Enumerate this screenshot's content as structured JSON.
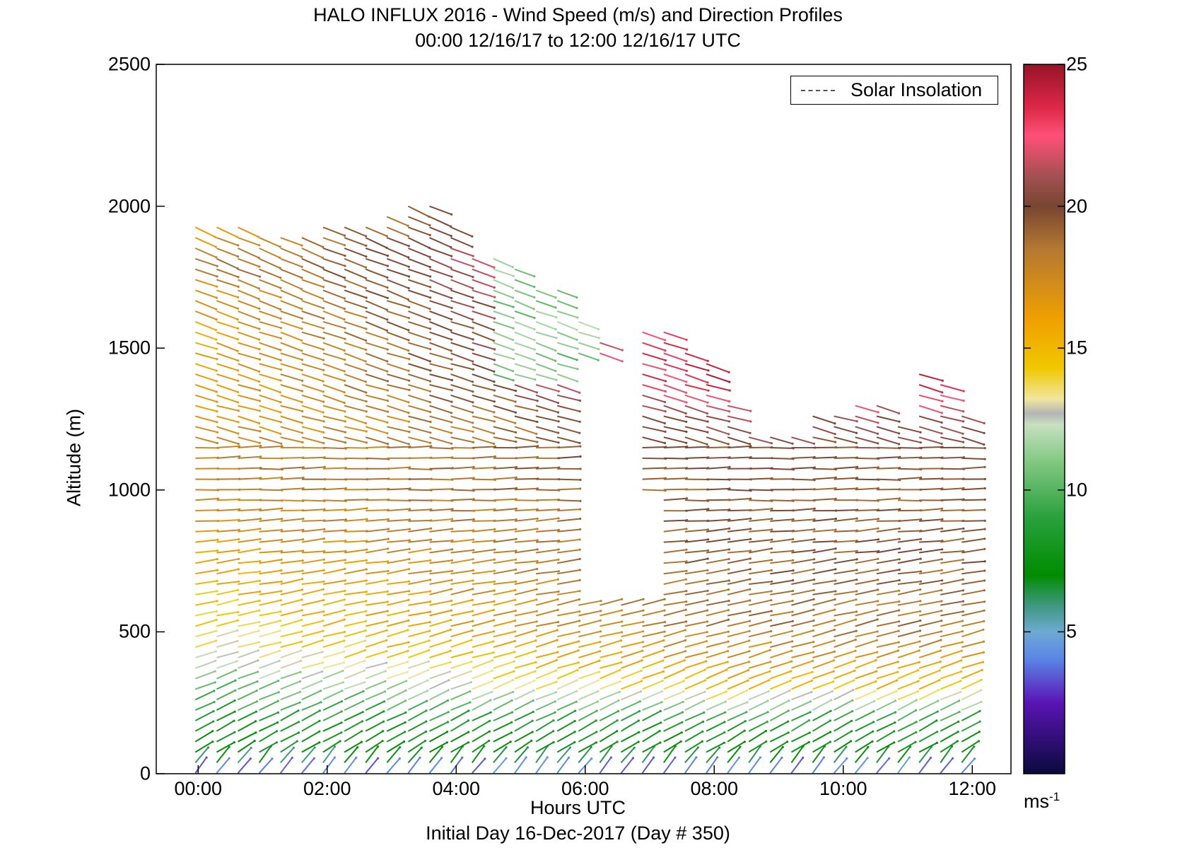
{
  "chart_data": {
    "type": "quiver",
    "title": "HALO INFLUX 2016 - Wind Speed (m/s) and Direction Profiles",
    "subtitle": "00:00 12/16/17 to 12:00 12/16/17  UTC",
    "xlabel": "Hours UTC",
    "xsublabel": "Initial Day 16-Dec-2017 (Day # 350)",
    "ylabel": "Altitude (m)",
    "xlim": [
      -0.65,
      12.6
    ],
    "ylim": [
      0,
      2500
    ],
    "x_ticks": [
      {
        "value": 0,
        "label": "00:00"
      },
      {
        "value": 2,
        "label": "02:00"
      },
      {
        "value": 4,
        "label": "04:00"
      },
      {
        "value": 6,
        "label": "06:00"
      },
      {
        "value": 8,
        "label": "08:00"
      },
      {
        "value": 10,
        "label": "10:00"
      },
      {
        "value": 12,
        "label": "12:00"
      }
    ],
    "y_ticks": [
      0,
      500,
      1000,
      1500,
      2000,
      2500
    ],
    "colorbar": {
      "range": [
        0,
        25
      ],
      "ticks": [
        5,
        10,
        15,
        20,
        25
      ],
      "unit": "ms",
      "unit_exponent": "-1",
      "stops": [
        {
          "v": 0,
          "c": "#0a0a3c"
        },
        {
          "v": 2.5,
          "c": "#5a14b4"
        },
        {
          "v": 4,
          "c": "#5a82e6"
        },
        {
          "v": 5,
          "c": "#6eaad2"
        },
        {
          "v": 6,
          "c": "#3c9678"
        },
        {
          "v": 7,
          "c": "#008c00"
        },
        {
          "v": 9,
          "c": "#28a03c"
        },
        {
          "v": 11,
          "c": "#82c882"
        },
        {
          "v": 12.3,
          "c": "#c8e0c0"
        },
        {
          "v": 12.7,
          "c": "#b4b4b4"
        },
        {
          "v": 13.2,
          "c": "#f0e6a0"
        },
        {
          "v": 14.3,
          "c": "#f0c800"
        },
        {
          "v": 16,
          "c": "#f0a000"
        },
        {
          "v": 18.5,
          "c": "#b47832"
        },
        {
          "v": 20,
          "c": "#784632"
        },
        {
          "v": 21,
          "c": "#a05050"
        },
        {
          "v": 22.5,
          "c": "#ff5078"
        },
        {
          "v": 23.5,
          "c": "#dc2846"
        },
        {
          "v": 25,
          "c": "#961428"
        }
      ]
    },
    "legend": {
      "position": "top-right",
      "entries": [
        {
          "label": "Solar Insolation",
          "style": "dashed"
        }
      ]
    },
    "field": {
      "time_start": 0,
      "time_step": 0.33,
      "time_count": 37,
      "alt_step": 37,
      "top_altitude_by_time": [
        1940,
        1930,
        1930,
        1920,
        1910,
        1920,
        1940,
        1960,
        1960,
        1990,
        2000,
        2030,
        1960,
        1850,
        1820,
        1790,
        1740,
        1740,
        1600,
        1530,
        1480,
        1560,
        1580,
        1510,
        1480,
        1330,
        1250,
        1240,
        1200,
        1290,
        1290,
        1300,
        1330,
        1350,
        1410,
        1400,
        1260
      ],
      "time_span": [
        0,
        11.7
      ],
      "gaps": [
        {
          "t0": 5.7,
          "t1": 6.9,
          "z0": 950,
          "z1": 1480
        },
        {
          "t0": 5.8,
          "t1": 7.2,
          "z0": 600,
          "z1": 1000
        },
        {
          "t0": 8.3,
          "t1": 9.0,
          "z0": 1200,
          "z1": 1400
        },
        {
          "t0": 10.0,
          "t1": 10.6,
          "z0": 1360,
          "z1": 1600
        },
        {
          "t0": 10.6,
          "t1": 11.0,
          "z0": 1260,
          "z1": 1600
        }
      ],
      "speed_profile_early": [
        {
          "z": 0,
          "s": 4
        },
        {
          "z": 40,
          "s": 6.5
        },
        {
          "z": 150,
          "s": 8
        },
        {
          "z": 300,
          "s": 10
        },
        {
          "z": 420,
          "s": 13
        },
        {
          "z": 600,
          "s": 14.5
        },
        {
          "z": 850,
          "s": 16.5
        },
        {
          "z": 1050,
          "s": 18
        },
        {
          "z": 1300,
          "s": 16
        },
        {
          "z": 1600,
          "s": 16
        },
        {
          "z": 1800,
          "s": 18
        },
        {
          "z": 2100,
          "s": 15
        }
      ],
      "speed_profile_late": [
        {
          "z": 0,
          "s": 4
        },
        {
          "z": 40,
          "s": 7
        },
        {
          "z": 180,
          "s": 9
        },
        {
          "z": 300,
          "s": 15
        },
        {
          "z": 500,
          "s": 18.5
        },
        {
          "z": 800,
          "s": 19.5
        },
        {
          "z": 1000,
          "s": 19.5
        },
        {
          "z": 1250,
          "s": 20.5
        },
        {
          "z": 1400,
          "s": 24
        }
      ],
      "green_upper_region": {
        "t0": 4.4,
        "t1": 6.2,
        "z0": 1380,
        "z1": 1900,
        "s": 11
      }
    }
  }
}
